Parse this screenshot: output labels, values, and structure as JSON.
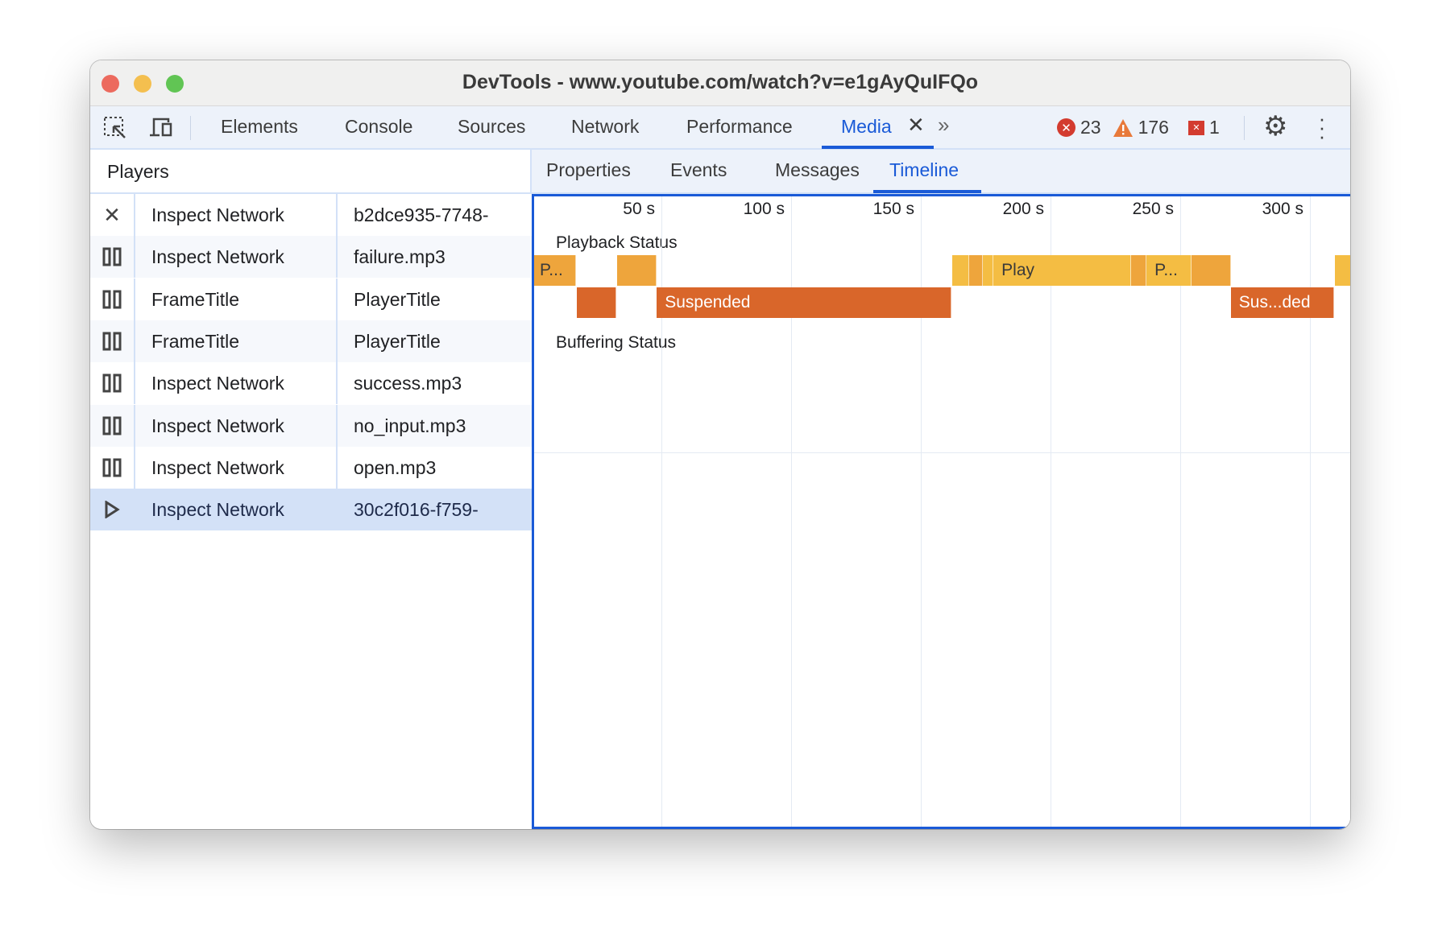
{
  "window": {
    "title": "DevTools - www.youtube.com/watch?v=e1gAyQuIFQo"
  },
  "toolbar": {
    "tabs": [
      {
        "label": "Elements"
      },
      {
        "label": "Console"
      },
      {
        "label": "Sources"
      },
      {
        "label": "Network"
      },
      {
        "label": "Performance"
      },
      {
        "label": "Media",
        "active": true
      }
    ],
    "errors": "23",
    "warnings": "176",
    "issues": "1",
    "accent": "#1a5ad7"
  },
  "players": {
    "header": "Players",
    "rows": [
      {
        "icon": "close-icon",
        "frame": "Inspect Network",
        "player": "b2dce935-7748-"
      },
      {
        "icon": "pause-icon",
        "frame": "Inspect Network",
        "player": "failure.mp3"
      },
      {
        "icon": "pause-icon",
        "frame": "FrameTitle",
        "player": "PlayerTitle"
      },
      {
        "icon": "pause-icon",
        "frame": "FrameTitle",
        "player": "PlayerTitle"
      },
      {
        "icon": "pause-icon",
        "frame": "Inspect Network",
        "player": "success.mp3"
      },
      {
        "icon": "pause-icon",
        "frame": "Inspect Network",
        "player": "no_input.mp3"
      },
      {
        "icon": "pause-icon",
        "frame": "Inspect Network",
        "player": "open.mp3"
      },
      {
        "icon": "play-icon",
        "frame": "Inspect Network",
        "player": "30c2f016-f759-",
        "selected": true
      }
    ]
  },
  "subtabs": [
    {
      "label": "Properties"
    },
    {
      "label": "Events"
    },
    {
      "label": "Messages"
    },
    {
      "label": "Timeline",
      "active": true
    }
  ],
  "timeline": {
    "ticks": [
      "50 s",
      "100 s",
      "150 s",
      "200 s",
      "250 s",
      "300 s"
    ],
    "tick_values": [
      50,
      100,
      150,
      200,
      250,
      300
    ],
    "playback_label": "Playback Status",
    "buffering_label": "Buffering Status",
    "colors": {
      "pause": "#eea53c",
      "play": "#f4bd43",
      "suspended": "#d9662a"
    },
    "playback": [
      {
        "start": 0,
        "end": 17,
        "kind": "pause",
        "label": "P..."
      },
      {
        "start": 33,
        "end": 48,
        "kind": "pause",
        "label": ""
      },
      {
        "start": 162,
        "end": 168.5,
        "kind": "play",
        "label": ""
      },
      {
        "start": 168.5,
        "end": 174,
        "kind": "pause",
        "label": ""
      },
      {
        "start": 174,
        "end": 178,
        "kind": "play",
        "label": ""
      },
      {
        "start": 178,
        "end": 231,
        "kind": "play",
        "label": "Play"
      },
      {
        "start": 231,
        "end": 237,
        "kind": "pause",
        "label": ""
      },
      {
        "start": 237,
        "end": 254.5,
        "kind": "play",
        "label": "P..."
      },
      {
        "start": 254.5,
        "end": 269.5,
        "kind": "pause",
        "label": ""
      },
      {
        "start": 309.5,
        "end": 316,
        "kind": "play",
        "label": ""
      }
    ],
    "suspended": [
      {
        "start": 17.5,
        "end": 32.5,
        "label": ""
      },
      {
        "start": 48.2,
        "end": 161.8,
        "label": "Suspended"
      },
      {
        "start": 269.5,
        "end": 309.3,
        "label": "Sus...ded"
      }
    ]
  }
}
